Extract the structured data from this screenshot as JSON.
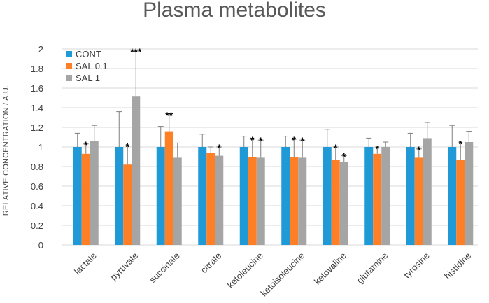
{
  "chart_data": {
    "type": "bar",
    "title": "Plasma metabolites",
    "xlabel": "",
    "ylabel": "RELATIVE CONCENTRATION / A.U.",
    "ylim": [
      0,
      2
    ],
    "ytick_step": 0.2,
    "ytick_labels": [
      "0",
      "0.2",
      "0.4",
      "0.6",
      "0.8",
      "1",
      "1.2",
      "1.4",
      "1.6",
      "1.8",
      "2"
    ],
    "grid": true,
    "legend_position": "top-left",
    "categories": [
      "lactate",
      "pyruvate",
      "succinate",
      "citrate",
      "ketoleucine",
      "ketoisoleucine",
      "ketovaline",
      "glutamine",
      "tyrosine",
      "histidine"
    ],
    "series": [
      {
        "name": "CONT",
        "color": "#1f9ad6",
        "values": [
          1,
          1,
          1,
          1,
          1,
          1,
          1,
          1,
          1,
          1
        ],
        "errors": [
          0.14,
          0.36,
          0.21,
          0.13,
          0.11,
          0.11,
          0.18,
          0.09,
          0.14,
          0.22
        ],
        "significance": [
          "",
          "",
          "",
          "",
          "",
          "",
          "",
          "",
          "",
          ""
        ]
      },
      {
        "name": "SAL 0.1",
        "color": "#ff7f27",
        "values": [
          0.93,
          0.82,
          1.16,
          0.94,
          0.9,
          0.9,
          0.87,
          0.93,
          0.89,
          0.87
        ],
        "errors": [
          0.1,
          0.19,
          0.17,
          0.06,
          0.18,
          0.18,
          0.13,
          0.06,
          0.09,
          0.17
        ],
        "significance": [
          "*",
          "*",
          "**",
          "",
          "*",
          "*",
          "*",
          "*",
          "*",
          "*"
        ]
      },
      {
        "name": "SAL  1",
        "color": "#a5a5a5",
        "values": [
          1.06,
          1.52,
          0.89,
          0.91,
          0.89,
          0.89,
          0.85,
          1.0,
          1.09,
          1.05
        ],
        "errors": [
          0.16,
          0.46,
          0.15,
          0.09,
          0.18,
          0.18,
          0.06,
          0.05,
          0.16,
          0.11
        ],
        "significance": [
          "",
          "***",
          "",
          "*",
          "*",
          "*",
          "*",
          "",
          "",
          ""
        ]
      }
    ]
  }
}
